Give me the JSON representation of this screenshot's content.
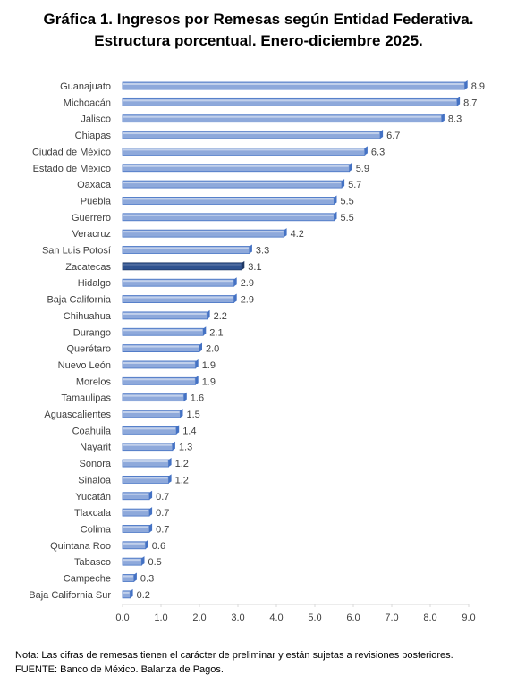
{
  "title_line1": "Gráfica 1. Ingresos por Remesas según Entidad Federativa.",
  "title_line2": "Estructura porcentual. Enero-diciembre 2025.",
  "colors": {
    "bar": "#8EA9DB",
    "bar_dark": "#4472C4",
    "highlight": "#2F528F",
    "highlight_dark": "#1F3864",
    "axis": "#D9D9D9",
    "text": "#404040"
  },
  "chart_data": {
    "type": "bar",
    "orientation": "horizontal",
    "title": "Gráfica 1. Ingresos por Remesas según Entidad Federativa. Estructura porcentual. Enero-diciembre 2025.",
    "categories": [
      "Guanajuato",
      "Michoacán",
      "Jalisco",
      "Chiapas",
      "Ciudad de México",
      "Estado de México",
      "Oaxaca",
      "Puebla",
      "Guerrero",
      "Veracruz",
      "San Luis Potosí",
      "Zacatecas",
      "Hidalgo",
      "Baja California",
      "Chihuahua",
      "Durango",
      "Querétaro",
      "Nuevo León",
      "Morelos",
      "Tamaulipas",
      "Aguascalientes",
      "Coahuila",
      "Nayarit",
      "Sonora",
      "Sinaloa",
      "Yucatán",
      "Tlaxcala",
      "Colima",
      "Quintana Roo",
      "Tabasco",
      "Campeche",
      "Baja California Sur"
    ],
    "values": [
      8.9,
      8.7,
      8.3,
      6.7,
      6.3,
      5.9,
      5.7,
      5.5,
      5.5,
      4.2,
      3.3,
      3.1,
      2.9,
      2.9,
      2.2,
      2.1,
      2.0,
      1.9,
      1.9,
      1.6,
      1.5,
      1.4,
      1.3,
      1.2,
      1.2,
      0.7,
      0.7,
      0.7,
      0.6,
      0.5,
      0.3,
      0.2
    ],
    "highlight_category": "Zacatecas",
    "xlim": [
      0,
      9
    ],
    "xticks": [
      "0.0",
      "1.0",
      "2.0",
      "3.0",
      "4.0",
      "5.0",
      "6.0",
      "7.0",
      "8.0",
      "9.0"
    ],
    "grid": false,
    "legend": "none"
  },
  "footnotes": {
    "nota": "Nota: Las cifras de remesas tienen el carácter de preliminar y están sujetas a revisiones posteriores.",
    "fuente": "FUENTE: Banco de México. Balanza de Pagos."
  }
}
